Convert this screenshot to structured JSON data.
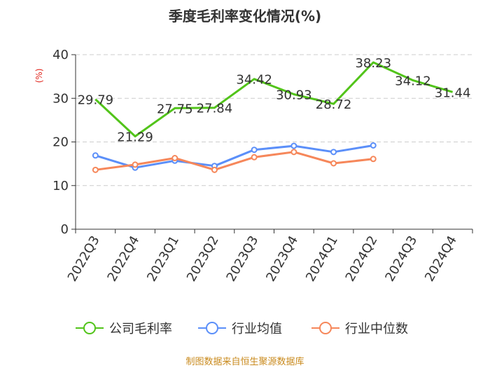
{
  "chart_data": {
    "type": "line",
    "title": "季度毛利率变化情况(%)",
    "ylabel": "(%)",
    "xlabel": "",
    "ylim": [
      0,
      40
    ],
    "yticks": [
      0,
      10,
      20,
      30,
      40
    ],
    "grid": true,
    "legend_position": "bottom",
    "categories": [
      "2022Q3",
      "2022Q4",
      "2023Q1",
      "2023Q2",
      "2023Q3",
      "2023Q4",
      "2024Q1",
      "2024Q2",
      "2024Q3",
      "2024Q4"
    ],
    "series": [
      {
        "name": "公司毛利率",
        "color": "#52c41a",
        "values": [
          29.79,
          21.29,
          27.75,
          27.84,
          34.42,
          30.93,
          28.72,
          38.23,
          34.12,
          31.44
        ],
        "labels": [
          "29.79",
          "21.29",
          "27.75",
          "27.84",
          "34.42",
          "30.93",
          "28.72",
          "38.23",
          "34.12",
          "31.44"
        ],
        "markers": false
      },
      {
        "name": "行业均值",
        "color": "#5b8ff9",
        "values": [
          16.9,
          14.1,
          15.7,
          14.5,
          18.2,
          19.1,
          17.7,
          19.2,
          null,
          null
        ],
        "markers": true
      },
      {
        "name": "行业中位数",
        "color": "#f6875a",
        "values": [
          13.6,
          14.8,
          16.3,
          13.6,
          16.5,
          17.7,
          15.1,
          16.1,
          null,
          null
        ],
        "markers": true
      }
    ],
    "source": "制图数据来自恒生聚源数据库"
  }
}
